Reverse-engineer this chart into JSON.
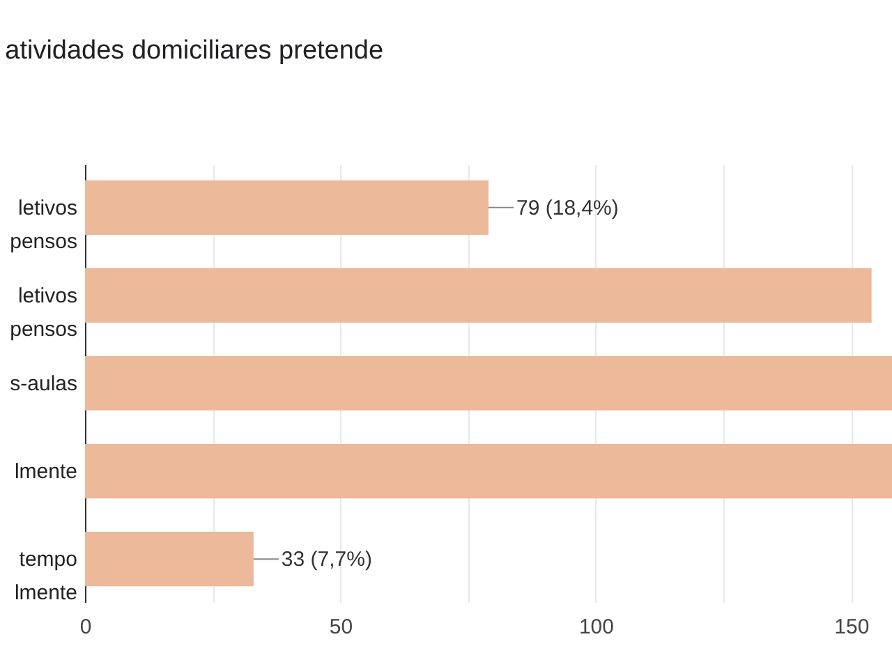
{
  "chart_data": {
    "type": "bar",
    "orientation": "horizontal",
    "title": "atividades domiciliares pretende",
    "categories": [
      "letivos\npensos",
      "letivos\npensos",
      "s-aulas",
      "lmente",
      "tempo\nlmente"
    ],
    "values": [
      79,
      154,
      158,
      158,
      33
    ],
    "value_labels": [
      "79 (18,4%)",
      null,
      null,
      null,
      "33 (7,7%)"
    ],
    "color": "#ecb99b",
    "xlim": [
      0,
      158
    ],
    "xticks": [
      0,
      {
        "value": 25,
        "label": null
      },
      50,
      {
        "value": 75,
        "label": null
      },
      100,
      {
        "value": 125,
        "label": null
      },
      150
    ],
    "grid": "x"
  }
}
